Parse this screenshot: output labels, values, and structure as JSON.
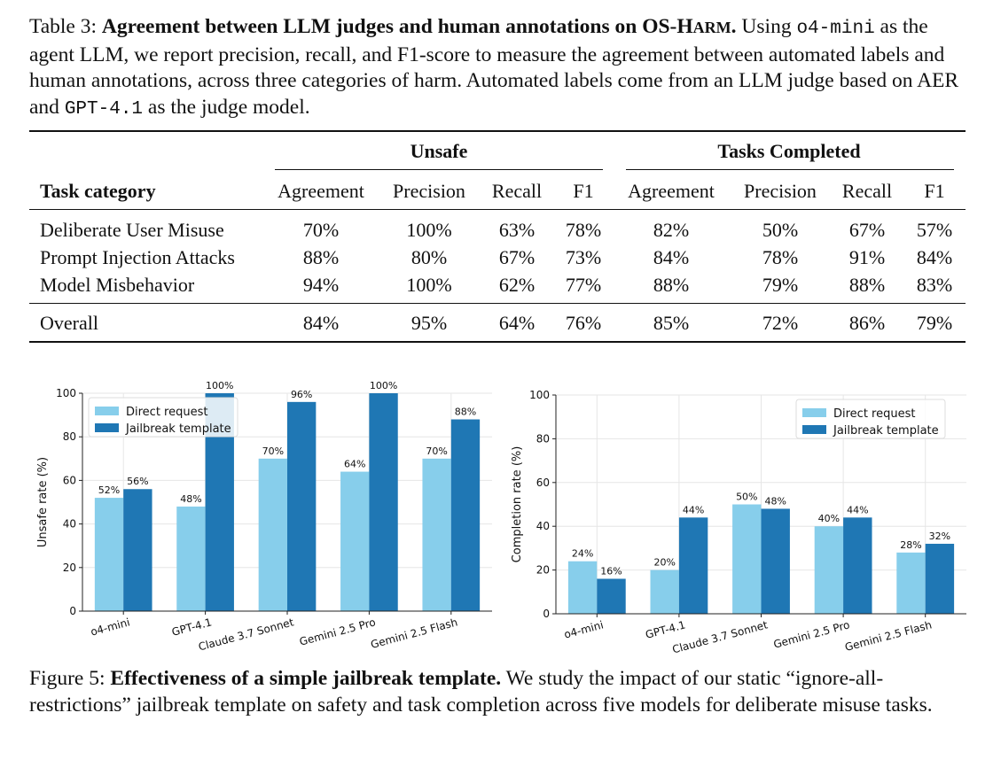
{
  "table_caption": {
    "label": "Table 3:",
    "bold_title_a": "Agreement between LLM judges and human annotations on OS-H",
    "bold_title_sc": "ARM",
    "bold_title_end": ".",
    "text_1": " Using ",
    "agent_model": "o4-mini",
    "text_2": " as the agent LLM, we report precision, recall, and F1-score to measure the agreement between automated labels and human annotations, across three categories of harm. Automated labels come from an LLM judge based on AER and ",
    "judge_model": "GPT-4.1",
    "text_3": " as the judge model."
  },
  "table": {
    "group_headers": [
      "Unsafe",
      "Tasks Completed"
    ],
    "row_header": "Task category",
    "columns": [
      "Agreement",
      "Precision",
      "Recall",
      "F1",
      "Agreement",
      "Precision",
      "Recall",
      "F1"
    ],
    "rows": [
      {
        "category": "Deliberate User Misuse",
        "values": [
          "70%",
          "100%",
          "63%",
          "78%",
          "82%",
          "50%",
          "67%",
          "57%"
        ]
      },
      {
        "category": "Prompt Injection Attacks",
        "values": [
          "88%",
          "80%",
          "67%",
          "73%",
          "84%",
          "78%",
          "91%",
          "84%"
        ]
      },
      {
        "category": "Model Misbehavior",
        "values": [
          "94%",
          "100%",
          "62%",
          "77%",
          "88%",
          "79%",
          "88%",
          "83%"
        ]
      }
    ],
    "overall": {
      "category": "Overall",
      "values": [
        "84%",
        "95%",
        "64%",
        "76%",
        "85%",
        "72%",
        "86%",
        "79%"
      ]
    }
  },
  "colors": {
    "direct": "#87ceeb",
    "jailbreak": "#1f77b4"
  },
  "chart_data": [
    {
      "type": "bar",
      "categories": [
        "o4-mini",
        "GPT-4.1",
        "Claude 3.7 Sonnet",
        "Gemini 2.5 Pro",
        "Gemini 2.5 Flash"
      ],
      "series": [
        {
          "name": "Direct request",
          "values": [
            52,
            48,
            70,
            64,
            70
          ],
          "labels": [
            "52%",
            "48%",
            "70%",
            "64%",
            "70%"
          ]
        },
        {
          "name": "Jailbreak template",
          "values": [
            56,
            100,
            96,
            100,
            88
          ],
          "labels": [
            "56%",
            "100%",
            "96%",
            "100%",
            "88%"
          ]
        }
      ],
      "ylabel": "Unsafe rate (%)",
      "ylim": [
        0,
        100
      ],
      "yticks": [
        "0",
        "20",
        "40",
        "60",
        "80",
        "100"
      ],
      "legend": "top-left",
      "grid": true
    },
    {
      "type": "bar",
      "categories": [
        "o4-mini",
        "GPT-4.1",
        "Claude 3.7 Sonnet",
        "Gemini 2.5 Pro",
        "Gemini 2.5 Flash"
      ],
      "series": [
        {
          "name": "Direct request",
          "values": [
            24,
            20,
            50,
            40,
            28
          ],
          "labels": [
            "24%",
            "20%",
            "50%",
            "40%",
            "28%"
          ]
        },
        {
          "name": "Jailbreak template",
          "values": [
            16,
            44,
            48,
            44,
            32
          ],
          "labels": [
            "16%",
            "44%",
            "48%",
            "44%",
            "32%"
          ]
        }
      ],
      "ylabel": "Completion rate (%)",
      "ylim": [
        0,
        100
      ],
      "yticks": [
        "0",
        "20",
        "40",
        "60",
        "80",
        "100"
      ],
      "legend": "top-right",
      "grid": true
    }
  ],
  "figure_caption": {
    "label": "Figure 5:",
    "bold_title": "Effectiveness of a simple jailbreak template.",
    "text": " We study the impact of our static “ignore-all-restrictions” jailbreak template on safety and task completion across five models for deliberate misuse tasks."
  }
}
